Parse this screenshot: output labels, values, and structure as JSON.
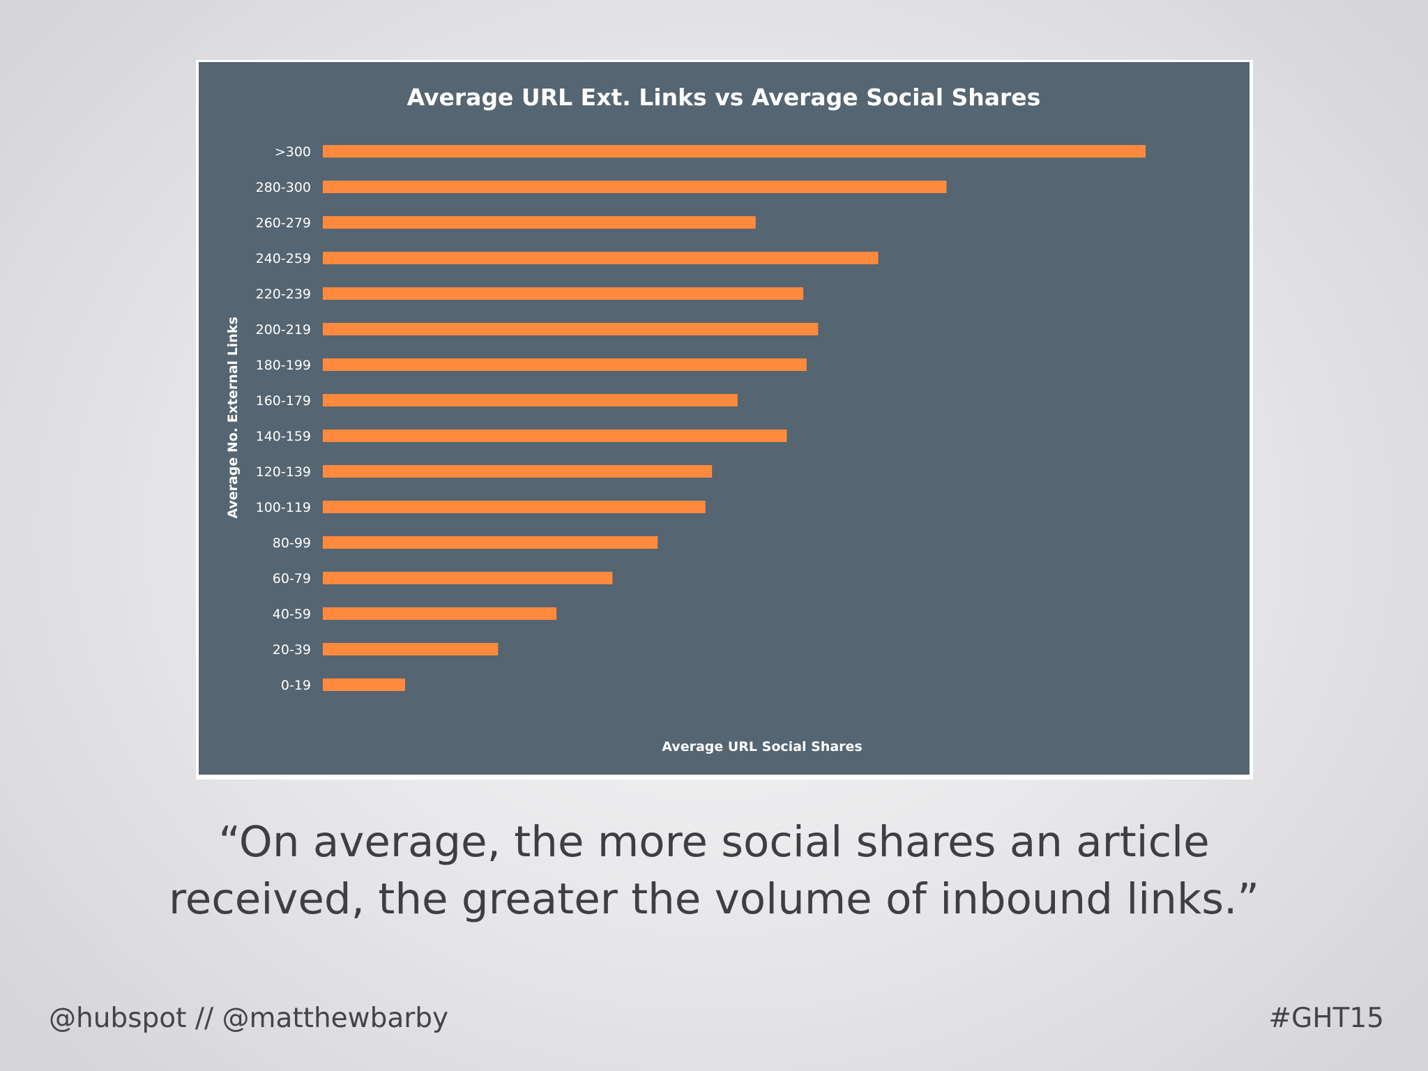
{
  "colors": {
    "panel": "#556571",
    "bar": "#FF8A3D",
    "text_light": "#FFFFFF",
    "text_dark": "#3F3F43"
  },
  "chart_data": {
    "type": "bar",
    "orientation": "horizontal",
    "title": "Average URL Ext. Links vs Average Social Shares",
    "xlabel": "Average URL Social Shares",
    "ylabel": "Average No. External Links",
    "categories": [
      "0-19",
      "20-39",
      "40-59",
      "60-79",
      "80-99",
      "100-119",
      "120-139",
      "140-159",
      "160-179",
      "180-199",
      "200-219",
      "220-239",
      "240-259",
      "260-279",
      "280-300",
      ">300"
    ],
    "values": [
      10,
      21.3,
      28.4,
      35.2,
      40.7,
      46.5,
      47.3,
      56.4,
      50.4,
      58.8,
      60.2,
      58.4,
      67.5,
      52.6,
      75.8,
      100
    ],
    "xlim": [
      0,
      100
    ],
    "value_scale": "relative (no tick values printed)",
    "grid": false,
    "legend": "none"
  },
  "quote": {
    "line1": "“On average, the more social shares an article",
    "line2": "received, the greater the volume of inbound links.”"
  },
  "footer": {
    "handles": "@hubspot // @matthewbarby",
    "hashtag": "#GHT15"
  }
}
